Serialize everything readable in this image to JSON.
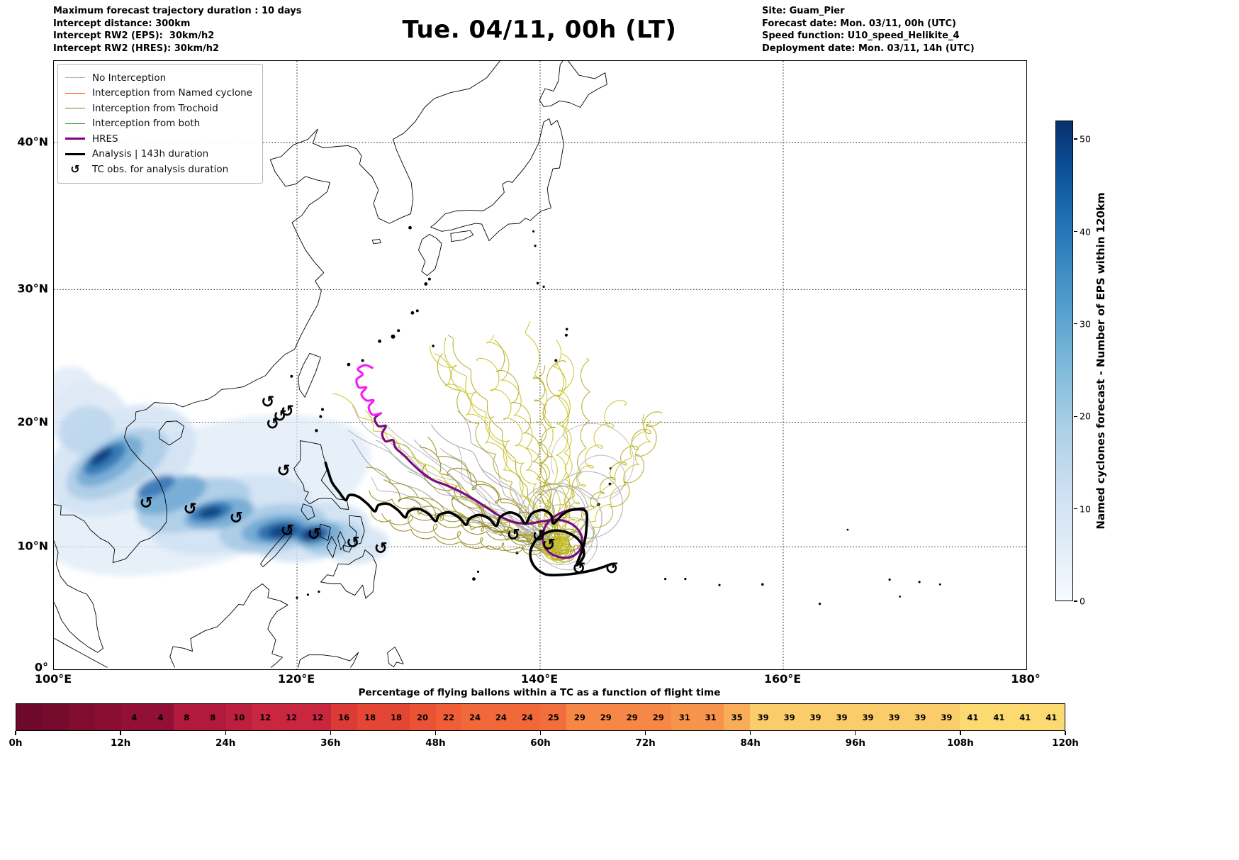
{
  "header": {
    "left_lines": [
      "Maximum forecast trajectory duration : 10 days",
      "Intercept distance: 300km",
      "Intercept RW2 (EPS):  30km/h2",
      "Intercept RW2 (HRES): 30km/h2"
    ],
    "title": "Tue. 04/11, 00h (LT)",
    "right_lines": [
      "Site: Guam_Pier",
      "Forecast date: Mon. 03/11, 00h (UTC)",
      "Speed function: U10_speed_Helikite_4",
      "Deployment date: Mon. 03/11, 14h (UTC)"
    ]
  },
  "map": {
    "lat_tick_labels": [
      {
        "lat": 40,
        "label": "40°N"
      },
      {
        "lat": 30,
        "label": "30°N"
      },
      {
        "lat": 20,
        "label": "20°N"
      },
      {
        "lat": 10,
        "label": "10°N"
      },
      {
        "lat": 0,
        "label": "0°"
      }
    ],
    "lon_tick_labels": [
      {
        "lon": 100,
        "label": "100°E"
      },
      {
        "lon": 120,
        "label": "120°E"
      },
      {
        "lon": 140,
        "label": "140°E"
      },
      {
        "lon": 160,
        "label": "160°E"
      },
      {
        "lon": 180,
        "label": "180°"
      }
    ],
    "legend_entries": [
      {
        "label": "No Interception",
        "swatch": "line",
        "color": "#a9a9a9",
        "weight": 1.5
      },
      {
        "label": "Interception from Named cyclone",
        "swatch": "line",
        "color": "#ff4500",
        "weight": 1.5
      },
      {
        "label": "Interception from Trochoid",
        "swatch": "line",
        "color": "#808000",
        "weight": 1.5
      },
      {
        "label": "Interception from both",
        "swatch": "line",
        "color": "#228b22",
        "weight": 1.5
      },
      {
        "label": "HRES",
        "swatch": "line",
        "color": "#800080",
        "weight": 3.5
      },
      {
        "label": "Analysis | 143h duration",
        "swatch": "line",
        "color": "#000000",
        "weight": 3.5
      },
      {
        "label": "TC obs. for analysis duration",
        "swatch": "marker",
        "symbol": "↺",
        "color": "#000000"
      }
    ]
  },
  "colorbar": {
    "label": "Named cyclones forecast - Number of EPS within 120km",
    "min": 0,
    "max": 52,
    "ticks": [
      0,
      10,
      20,
      30,
      40,
      50
    ]
  },
  "bottom_strip": {
    "title": "Percentage of flying ballons within a TC as a function of flight time",
    "hour_labels": [
      "0h",
      "12h",
      "24h",
      "36h",
      "48h",
      "60h",
      "72h",
      "84h",
      "96h",
      "108h",
      "120h"
    ]
  },
  "chart_data": {
    "type": "map",
    "subtype": "tropical-cyclone-trajectory-ensemble-forecast",
    "map_extent": {
      "lon_min": 100,
      "lon_max": 180,
      "lat_min": 0,
      "lat_max": 45
    },
    "graticule": {
      "lat_lines": [
        10,
        20,
        30,
        40
      ],
      "lon_lines": [
        120,
        140,
        160
      ]
    },
    "genesis_cluster": {
      "lon": 141.5,
      "lat": 10
    },
    "ensemble_series": [
      {
        "name": "No Interception",
        "color": "#a9a9a9",
        "approx_count": 19,
        "behavior": "smooth gray tracks and large loops fanning W-NW from the genesis cluster toward 123-136E / 13-21N"
      },
      {
        "name": "Interception from Trochoid",
        "color": "#808000",
        "approx_count": 34,
        "behavior": "looping trochoid tracks fanning N-NW from the genesis cluster toward 124-152E / 16-28N"
      },
      {
        "name": "Interception from Named cyclone",
        "color": "#ff4500",
        "approx_count": 0,
        "behavior": "none visible"
      },
      {
        "name": "Interception from both",
        "color": "#228b22",
        "approx_count": 0,
        "behavior": "none visible"
      }
    ],
    "hres_track": {
      "color": "#7c0b80",
      "tail_color": "#f320f3",
      "waypoints": [
        [
          143.6,
          13.1
        ],
        [
          140.2,
          10.8
        ],
        [
          141.4,
          9.2
        ],
        [
          143.3,
          9.8
        ],
        [
          141.5,
          12.2
        ],
        [
          137.9,
          12.0
        ],
        [
          133.4,
          14.5
        ],
        [
          129.5,
          16.7
        ],
        [
          127.0,
          19.1
        ],
        [
          126.4,
          20.3
        ],
        [
          125.3,
          22.2
        ],
        [
          125.6,
          24.4
        ]
      ]
    },
    "analysis_track": {
      "color": "#000000",
      "duration_h": 143,
      "waypoints": [
        [
          145.9,
          8.6
        ],
        [
          141.8,
          7.7
        ],
        [
          139.2,
          9.6
        ],
        [
          141.0,
          11.3
        ],
        [
          143.6,
          9.3
        ],
        [
          143.75,
          12.9
        ],
        [
          139.3,
          12.7
        ],
        [
          135.0,
          12.6
        ],
        [
          130.0,
          13.1
        ],
        [
          125.0,
          14.1
        ],
        [
          122.35,
          16.8
        ]
      ]
    },
    "tc_obs_positions_lonlat": [
      [
        107.6,
        13.6
      ],
      [
        111.2,
        13.1
      ],
      [
        115.0,
        12.4
      ],
      [
        119.2,
        11.35
      ],
      [
        121.4,
        11.05
      ],
      [
        124.6,
        10.35
      ],
      [
        126.9,
        9.9
      ],
      [
        137.8,
        11.0
      ],
      [
        140.7,
        10.2
      ],
      [
        143.2,
        8.25
      ],
      [
        145.9,
        8.25
      ],
      [
        139.9,
        10.9
      ],
      [
        118.0,
        19.9
      ],
      [
        118.6,
        20.5
      ],
      [
        119.2,
        20.9
      ],
      [
        117.6,
        21.6
      ],
      [
        118.9,
        16.2
      ]
    ],
    "balloon_density_band": {
      "colormap": "Blues",
      "extent": "shaded band from 101E/22N along the Vietnam coast to 126E/10N through the central Philippines"
    },
    "colorbar": {
      "label": "Named cyclones forecast - Number of EPS within 120km",
      "vmin": 0,
      "vmax": 52,
      "ticks": [
        0,
        10,
        20,
        30,
        40,
        50
      ]
    },
    "flight_time_strip": {
      "type": "heatmap-strip",
      "title": "Percentage of flying ballons within a TC as a function of flight time",
      "bin_hours": 3,
      "bins_start_hour": 0,
      "values_pct": [
        null,
        null,
        null,
        null,
        4,
        4,
        8,
        8,
        10,
        12,
        12,
        12,
        16,
        18,
        18,
        20,
        22,
        24,
        24,
        24,
        25,
        29,
        29,
        29,
        29,
        31,
        31,
        35,
        39,
        39,
        39,
        39,
        39,
        39,
        39,
        39,
        41,
        41,
        41,
        41
      ],
      "x_ticks_hours": [
        0,
        12,
        24,
        36,
        48,
        60,
        72,
        84,
        96,
        108,
        120
      ]
    }
  }
}
